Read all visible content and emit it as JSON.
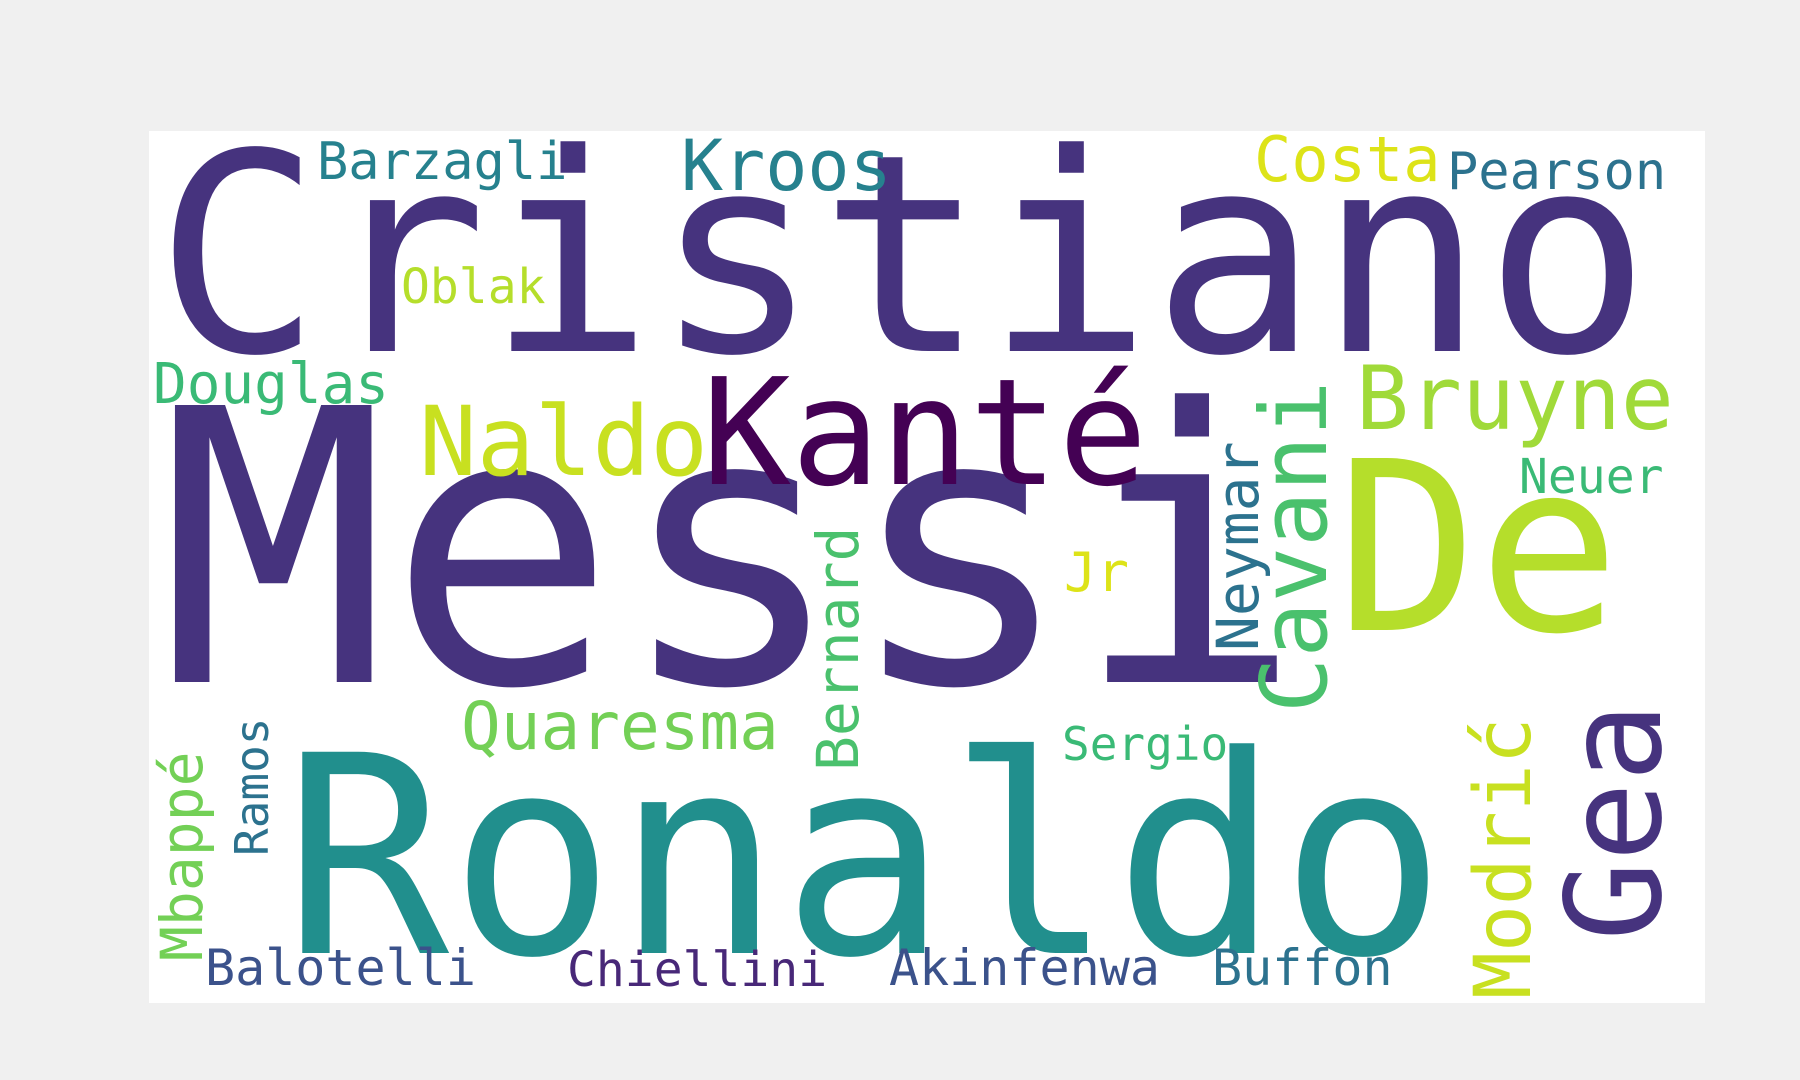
{
  "words": [
    {
      "id": "cristiano",
      "text": "Cristiano",
      "color": "#46337e"
    },
    {
      "id": "messi",
      "text": "Messi",
      "color": "#46337e"
    },
    {
      "id": "ronaldo",
      "text": "Ronaldo",
      "color": "#218f8d"
    },
    {
      "id": "de",
      "text": "De",
      "color": "#b5de2b"
    },
    {
      "id": "gea",
      "text": "Gea",
      "color": "#46337e"
    },
    {
      "id": "kante",
      "text": "Kanté",
      "color": "#440154"
    },
    {
      "id": "naldo",
      "text": "Naldo",
      "color": "#c8e020"
    },
    {
      "id": "bruyne",
      "text": "Bruyne",
      "color": "#a0da39"
    },
    {
      "id": "cavani",
      "text": "Cavani",
      "color": "#4ac16d"
    },
    {
      "id": "modric",
      "text": "Modrić",
      "color": "#c8e020"
    },
    {
      "id": "quaresma",
      "text": "Quaresma",
      "color": "#73d056"
    },
    {
      "id": "bernard",
      "text": "Bernard",
      "color": "#4ac16d"
    },
    {
      "id": "neymar",
      "text": "Neymar",
      "color": "#2c728e"
    },
    {
      "id": "kroos",
      "text": "Kroos",
      "color": "#26818e"
    },
    {
      "id": "costa",
      "text": "Costa",
      "color": "#dde318"
    },
    {
      "id": "pearson",
      "text": "Pearson",
      "color": "#2c728e"
    },
    {
      "id": "barzagli",
      "text": "Barzagli",
      "color": "#26818e"
    },
    {
      "id": "douglas",
      "text": "Douglas",
      "color": "#3aba76"
    },
    {
      "id": "oblak",
      "text": "Oblak",
      "color": "#b5de2b"
    },
    {
      "id": "neuer",
      "text": "Neuer",
      "color": "#3aba76"
    },
    {
      "id": "jr",
      "text": "Jr",
      "color": "#dde318"
    },
    {
      "id": "sergio",
      "text": "Sergio",
      "color": "#3aba76"
    },
    {
      "id": "mbappe",
      "text": "Mbappé",
      "color": "#73d056"
    },
    {
      "id": "ramos",
      "text": "Ramos",
      "color": "#2c728e"
    },
    {
      "id": "balotelli",
      "text": "Balotelli",
      "color": "#3b528b"
    },
    {
      "id": "chiellini",
      "text": "Chiellini",
      "color": "#482878"
    },
    {
      "id": "akinfenwa",
      "text": "Akinfenwa",
      "color": "#3b528b"
    },
    {
      "id": "buffon",
      "text": "Buffon",
      "color": "#2c728e"
    }
  ]
}
